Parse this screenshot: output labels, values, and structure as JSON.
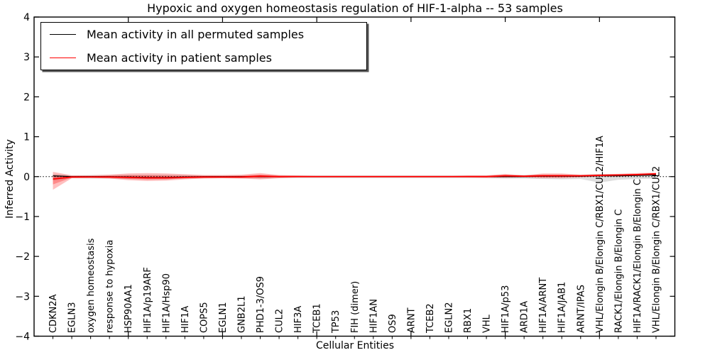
{
  "figure": {
    "title": "Hypoxic and oxygen homeostasis regulation of HIF-1-alpha -- 53 samples",
    "background_color": "#ffffff",
    "axis_color": "#000000"
  },
  "legend": {
    "position": "upper left",
    "entries": [
      {
        "label": "Mean activity in all permuted samples",
        "color": "#000000"
      },
      {
        "label": "Mean activity in patient samples",
        "color": "#ff0000"
      }
    ]
  },
  "chart_data": {
    "type": "line",
    "title": "Hypoxic and oxygen homeostasis regulation of HIF-1-alpha -- 53 samples",
    "xlabel": "Cellular Entities",
    "ylabel": "Inferred Activity",
    "ylim": [
      -4,
      4
    ],
    "yticks": [
      -4,
      -3,
      -2,
      -1,
      0,
      1,
      2,
      3,
      4
    ],
    "xtick_major_positions": [
      5,
      10,
      15,
      20,
      25,
      30
    ],
    "grid": false,
    "legend_position": "upper left",
    "zero_line": 0,
    "categories": [
      "CDKN2A",
      "EGLN3",
      "oxygen homeostasis",
      "response to hypoxia",
      "HSP90AA1",
      "HIF1A/p19ARF",
      "HIF1A/Hsp90",
      "HIF1A",
      "COPS5",
      "EGLN1",
      "GNB2L1",
      "PHD1-3/OS9",
      "CUL2",
      "HIF3A",
      "TCEB1",
      "TP53",
      "FIH (dimer)",
      "HIF1AN",
      "OS9",
      "ARNT",
      "TCEB2",
      "EGLN2",
      "RBX1",
      "VHL",
      "HIF1A/p53",
      "ARD1A",
      "HIF1A/ARNT",
      "HIF1A/JAB1",
      "ARNT/IPAS",
      "VHL/Elongin B/Elongin C/RBX1/CUL2/HIF1A",
      "RACK1/Elongin B/Elongin C",
      "HIF1A/RACK1/Elongin B/Elongin C",
      "VHL/Elongin B/Elongin C/RBX1/CUL2"
    ],
    "series": [
      {
        "name": "Mean activity in all permuted samples",
        "color": "#000000",
        "values": [
          0.02,
          0.0,
          0.0,
          0.0,
          -0.01,
          -0.02,
          -0.02,
          -0.01,
          0.0,
          0.0,
          0.0,
          0.0,
          0.0,
          0.0,
          0.0,
          0.0,
          0.0,
          0.0,
          0.0,
          0.0,
          0.0,
          0.0,
          0.0,
          0.0,
          0.0,
          0.0,
          0.01,
          0.01,
          0.01,
          0.02,
          0.02,
          0.03,
          0.04
        ]
      },
      {
        "name": "Mean activity in patient samples",
        "color": "#ff0000",
        "values": [
          -0.06,
          -0.01,
          -0.01,
          -0.01,
          -0.02,
          -0.03,
          -0.03,
          -0.02,
          -0.01,
          -0.01,
          -0.01,
          0.01,
          0.0,
          0.0,
          0.0,
          0.0,
          0.0,
          0.0,
          0.0,
          0.0,
          0.0,
          0.0,
          0.0,
          0.0,
          0.02,
          0.01,
          0.02,
          0.02,
          0.02,
          0.03,
          0.04,
          0.05,
          0.07
        ]
      }
    ],
    "bands": [
      {
        "name": "permuted-samples-range",
        "color": "#000000",
        "opacity": 0.13,
        "upper": [
          0.07,
          0.03,
          0.04,
          0.04,
          0.05,
          0.05,
          0.05,
          0.04,
          0.03,
          0.03,
          0.03,
          0.04,
          0.03,
          0.03,
          0.03,
          0.03,
          0.03,
          0.03,
          0.03,
          0.03,
          0.03,
          0.03,
          0.03,
          0.03,
          0.04,
          0.04,
          0.05,
          0.05,
          0.04,
          0.07,
          0.06,
          0.06,
          0.07
        ],
        "lower": [
          -0.1,
          -0.04,
          -0.05,
          -0.05,
          -0.06,
          -0.07,
          -0.07,
          -0.05,
          -0.04,
          -0.04,
          -0.04,
          -0.05,
          -0.04,
          -0.04,
          -0.04,
          -0.04,
          -0.04,
          -0.04,
          -0.04,
          -0.04,
          -0.04,
          -0.04,
          -0.04,
          -0.04,
          -0.05,
          -0.05,
          -0.06,
          -0.07,
          -0.06,
          -0.15,
          -0.08,
          -0.06,
          -0.05
        ]
      },
      {
        "name": "patient-samples-range",
        "color": "#ff0000",
        "opacity": 0.25,
        "upper": [
          0.12,
          0.03,
          0.03,
          0.05,
          0.08,
          0.09,
          0.08,
          0.06,
          0.04,
          0.04,
          0.05,
          0.09,
          0.04,
          0.03,
          0.02,
          0.02,
          0.02,
          0.02,
          0.02,
          0.02,
          0.02,
          0.02,
          0.03,
          0.03,
          0.07,
          0.03,
          0.08,
          0.08,
          0.05,
          0.06,
          0.07,
          0.09,
          0.1
        ],
        "lower": [
          -0.33,
          -0.04,
          -0.03,
          -0.05,
          -0.09,
          -0.11,
          -0.1,
          -0.07,
          -0.05,
          -0.04,
          -0.05,
          -0.07,
          -0.04,
          -0.02,
          -0.02,
          -0.02,
          -0.02,
          -0.02,
          -0.02,
          -0.02,
          -0.02,
          -0.02,
          -0.02,
          -0.03,
          -0.03,
          -0.02,
          -0.04,
          -0.04,
          -0.02,
          0.0,
          0.0,
          0.02,
          0.03
        ]
      }
    ]
  }
}
